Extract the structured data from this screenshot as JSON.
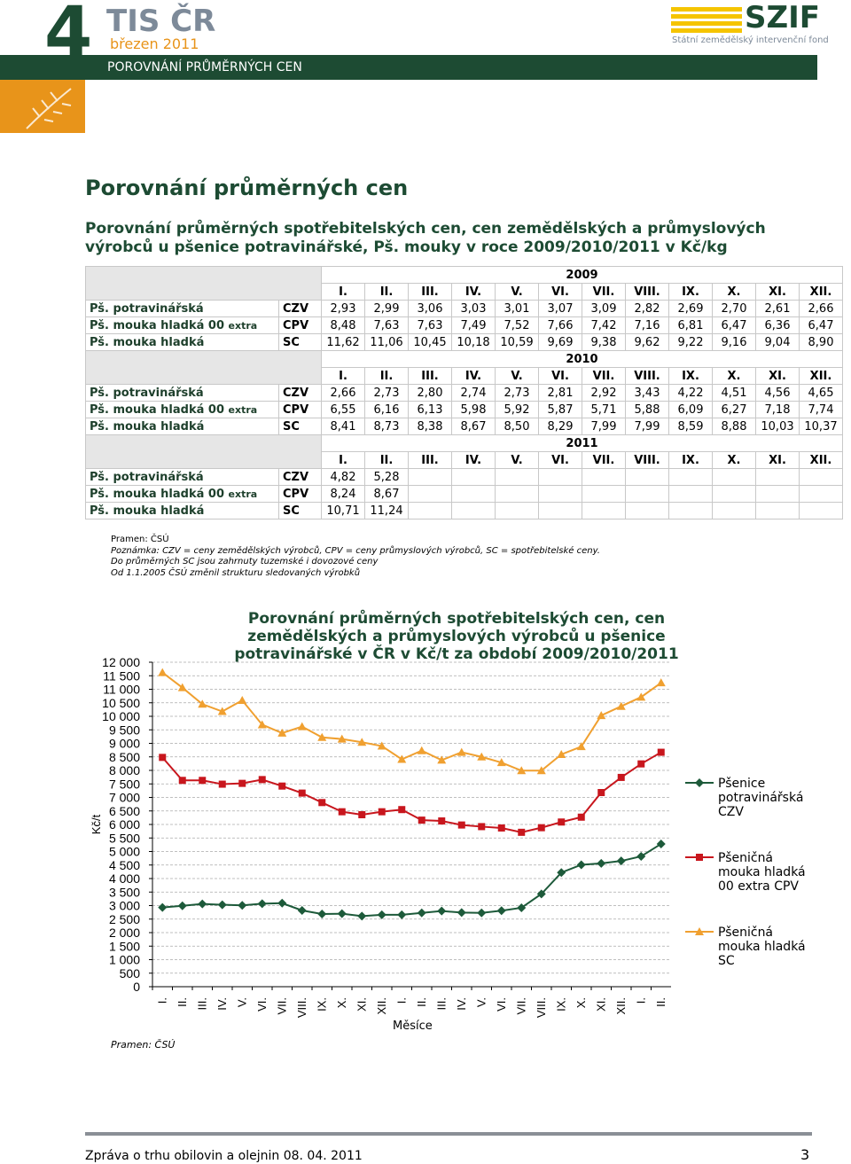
{
  "header": {
    "number": "4",
    "brand": "TIS ČR",
    "date": "březen 2011",
    "section": "POROVNÁNÍ PRŮMĚRNÝCH CEN",
    "logo": "SZIF",
    "logo_subtitle": "Státní zemědělský intervenční fond"
  },
  "title": "Porovnání průměrných cen",
  "table_title": "Porovnání průměrných spotřebitelských cen, cen zemědělských a průmyslových výrobců u pšenice potravinářské, Pš. mouky v roce 2009/2010/2011 v Kč/kg",
  "table": {
    "blocks": [
      {
        "year": "2009",
        "months": [
          "I.",
          "II.",
          "III.",
          "IV.",
          "V.",
          "VI.",
          "VII.",
          "VIII.",
          "IX.",
          "X.",
          "XI.",
          "XII."
        ],
        "rows": [
          {
            "label": "Pš. potravinářská",
            "code": "CZV",
            "values": [
              "2,93",
              "2,99",
              "3,06",
              "3,03",
              "3,01",
              "3,07",
              "3,09",
              "2,82",
              "2,69",
              "2,70",
              "2,61",
              "2,66"
            ]
          },
          {
            "label": "Pš. mouka hladká 00",
            "label_small": "extra",
            "code": "CPV",
            "values": [
              "8,48",
              "7,63",
              "7,63",
              "7,49",
              "7,52",
              "7,66",
              "7,42",
              "7,16",
              "6,81",
              "6,47",
              "6,36",
              "6,47"
            ]
          },
          {
            "label": "Pš. mouka hladká",
            "code": "SC",
            "values": [
              "11,62",
              "11,06",
              "10,45",
              "10,18",
              "10,59",
              "9,69",
              "9,38",
              "9,62",
              "9,22",
              "9,16",
              "9,04",
              "8,90"
            ]
          }
        ]
      },
      {
        "year": "2010",
        "months": [
          "I.",
          "II.",
          "III.",
          "IV.",
          "V.",
          "VI.",
          "VII.",
          "VIII.",
          "IX.",
          "X.",
          "XI.",
          "XII."
        ],
        "rows": [
          {
            "label": "Pš. potravinářská",
            "code": "CZV",
            "values": [
              "2,66",
              "2,73",
              "2,80",
              "2,74",
              "2,73",
              "2,81",
              "2,92",
              "3,43",
              "4,22",
              "4,51",
              "4,56",
              "4,65"
            ]
          },
          {
            "label": "Pš. mouka hladká 00",
            "label_small": "extra",
            "code": "CPV",
            "values": [
              "6,55",
              "6,16",
              "6,13",
              "5,98",
              "5,92",
              "5,87",
              "5,71",
              "5,88",
              "6,09",
              "6,27",
              "7,18",
              "7,74"
            ]
          },
          {
            "label": "Pš. mouka hladká",
            "code": "SC",
            "values": [
              "8,41",
              "8,73",
              "8,38",
              "8,67",
              "8,50",
              "8,29",
              "7,99",
              "7,99",
              "8,59",
              "8,88",
              "10,03",
              "10,37"
            ]
          }
        ]
      },
      {
        "year": "2011",
        "months": [
          "I.",
          "II.",
          "III.",
          "IV.",
          "V.",
          "VI.",
          "VII.",
          "VIII.",
          "IX.",
          "X.",
          "XI.",
          "XII."
        ],
        "rows": [
          {
            "label": "Pš. potravinářská",
            "code": "CZV",
            "values": [
              "4,82",
              "5,28"
            ]
          },
          {
            "label": "Pš. mouka hladká 00",
            "label_small": "extra",
            "code": "CPV",
            "values": [
              "8,24",
              "8,67"
            ]
          },
          {
            "label": "Pš. mouka hladká",
            "code": "SC",
            "values": [
              "10,71",
              "11,24"
            ]
          }
        ]
      }
    ]
  },
  "notes": [
    "Pramen: ČSÚ",
    "Poznámka: CZV = ceny zemědělských výrobců, CPV = ceny průmyslových výrobců, SC = spotřebitelské ceny.",
    "Do průměrných SC jsou zahrnuty tuzemské i dovozové ceny",
    "Od 1.1.2005 ČSÚ změnil strukturu sledovaných výrobků"
  ],
  "chart_data": {
    "type": "line",
    "title": "Porovnání průměrných spotřebitelských cen, cen zemědělských a průmyslových výrobců u pšenice potravinářské v ČR v Kč/t za období 2009/2010/2011",
    "x_label": "Měsíce",
    "y_label": "Kč/t",
    "source": "Pramen: ČSÚ",
    "categories": [
      "I.",
      "II.",
      "III.",
      "IV.",
      "V.",
      "VI.",
      "VII.",
      "VIII.",
      "IX.",
      "X.",
      "XI.",
      "XII.",
      "I.",
      "II.",
      "III.",
      "IV.",
      "V.",
      "VI.",
      "VII.",
      "VIII.",
      "IX.",
      "X.",
      "XI.",
      "XII.",
      "I.",
      "II."
    ],
    "series": [
      {
        "name": "Pšenice potravinářská CZV",
        "color": "#1d5a3a",
        "marker": "diamond",
        "values": [
          2930,
          2990,
          3060,
          3030,
          3010,
          3070,
          3090,
          2820,
          2690,
          2700,
          2610,
          2660,
          2660,
          2730,
          2800,
          2740,
          2730,
          2810,
          2920,
          3430,
          4220,
          4510,
          4560,
          4650,
          4820,
          5280
        ]
      },
      {
        "name": "Pšeničná mouka hladká 00 extra CPV",
        "color": "#c8161d",
        "marker": "square",
        "values": [
          8480,
          7630,
          7630,
          7490,
          7520,
          7660,
          7420,
          7160,
          6810,
          6470,
          6360,
          6470,
          6550,
          6160,
          6130,
          5980,
          5920,
          5870,
          5710,
          5880,
          6090,
          6270,
          7180,
          7740,
          8240,
          8670
        ]
      },
      {
        "name": "Pšeničná mouka hladká SC",
        "color": "#f0a030",
        "marker": "triangle",
        "values": [
          11620,
          11060,
          10450,
          10180,
          10590,
          9690,
          9380,
          9620,
          9220,
          9160,
          9040,
          8900,
          8410,
          8730,
          8380,
          8670,
          8500,
          8290,
          7990,
          7990,
          8590,
          8880,
          10030,
          10370,
          10710,
          11240
        ]
      }
    ],
    "ylim": [
      0,
      12000
    ],
    "yticks": [
      0,
      500,
      {
        "value": 1000,
        "label": "1 000"
      },
      {
        "value": 1500,
        "label": "1 500"
      },
      {
        "value": 2000,
        "label": "2 000"
      },
      {
        "value": 2500,
        "label": "2 500"
      },
      {
        "value": 3000,
        "label": "3 000"
      },
      {
        "value": 3500,
        "label": "3 500"
      },
      {
        "value": 4000,
        "label": "4 000"
      },
      {
        "value": 4500,
        "label": "4 500"
      },
      {
        "value": 5000,
        "label": "5 000"
      },
      {
        "value": 5500,
        "label": "5 500"
      },
      {
        "value": 6000,
        "label": "6 000"
      },
      {
        "value": 6500,
        "label": "6 500"
      },
      {
        "value": 7000,
        "label": "7 000"
      },
      {
        "value": 7500,
        "label": "7 500"
      },
      {
        "value": 8000,
        "label": "8 000"
      },
      {
        "value": 8500,
        "label": "8 500"
      },
      {
        "value": 9000,
        "label": "9 000"
      },
      {
        "value": 9500,
        "label": "9 500"
      },
      {
        "value": 10000,
        "label": "10 000"
      },
      {
        "value": 10500,
        "label": "10 500"
      },
      {
        "value": 11000,
        "label": "11 000"
      },
      {
        "value": 11500,
        "label": "11 500"
      },
      {
        "value": 12000,
        "label": "12 000"
      }
    ],
    "grid": true,
    "legend": "right"
  },
  "footer": {
    "text": "Zpráva o trhu obilovin a olejnin 08. 04. 2011",
    "page": "3"
  }
}
